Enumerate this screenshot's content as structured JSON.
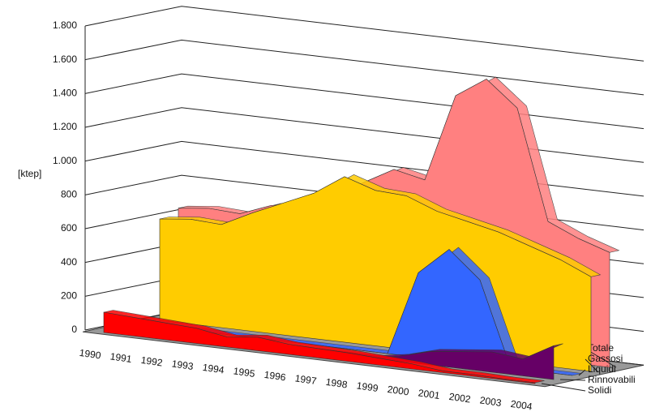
{
  "chart_data": {
    "type": "area3d",
    "y_label": "[ktep]",
    "categories": [
      "1990",
      "1991",
      "1992",
      "1993",
      "1994",
      "1995",
      "1996",
      "1997",
      "1998",
      "1999",
      "2000",
      "2001",
      "2002",
      "2003",
      "2004"
    ],
    "ylim": [
      0,
      1800
    ],
    "yticks": [
      0,
      200,
      400,
      600,
      800,
      {
        "value": 1000,
        "label": "1.000"
      },
      {
        "value": 1200,
        "label": "1.200"
      },
      {
        "value": 1400,
        "label": "1.400"
      },
      {
        "value": 1600,
        "label": "1.600"
      },
      {
        "value": 1800,
        "label": "1.800"
      }
    ],
    "grid": true,
    "series": [
      {
        "name": "Solidi",
        "color": "#ff0000",
        "values": [
          120,
          110,
          100,
          90,
          60,
          80,
          60,
          55,
          50,
          40,
          30,
          10,
          10,
          5,
          5
        ]
      },
      {
        "name": "Rinnovabili",
        "color": "#660066",
        "values": [
          0,
          0,
          0,
          0,
          0,
          0,
          0,
          0,
          0,
          30,
          80,
          100,
          120,
          100,
          200
        ]
      },
      {
        "name": "Liquidi",
        "color": "#3366ff",
        "values": [
          0,
          0,
          0,
          0,
          0,
          0,
          0,
          0,
          0,
          500,
          660,
          500,
          0,
          0,
          0
        ]
      },
      {
        "name": "Gassosi",
        "color": "#ffcc00",
        "values": [
          600,
          620,
          610,
          700,
          780,
          860,
          980,
          920,
          910,
          840,
          800,
          760,
          700,
          640,
          560
        ]
      },
      {
        "name": "Totale",
        "color": "#ff8080",
        "values": [
          640,
          660,
          650,
          720,
          760,
          810,
          920,
          1020,
          980,
          1500,
          1620,
          1470,
          820,
          740,
          680
        ]
      }
    ]
  }
}
